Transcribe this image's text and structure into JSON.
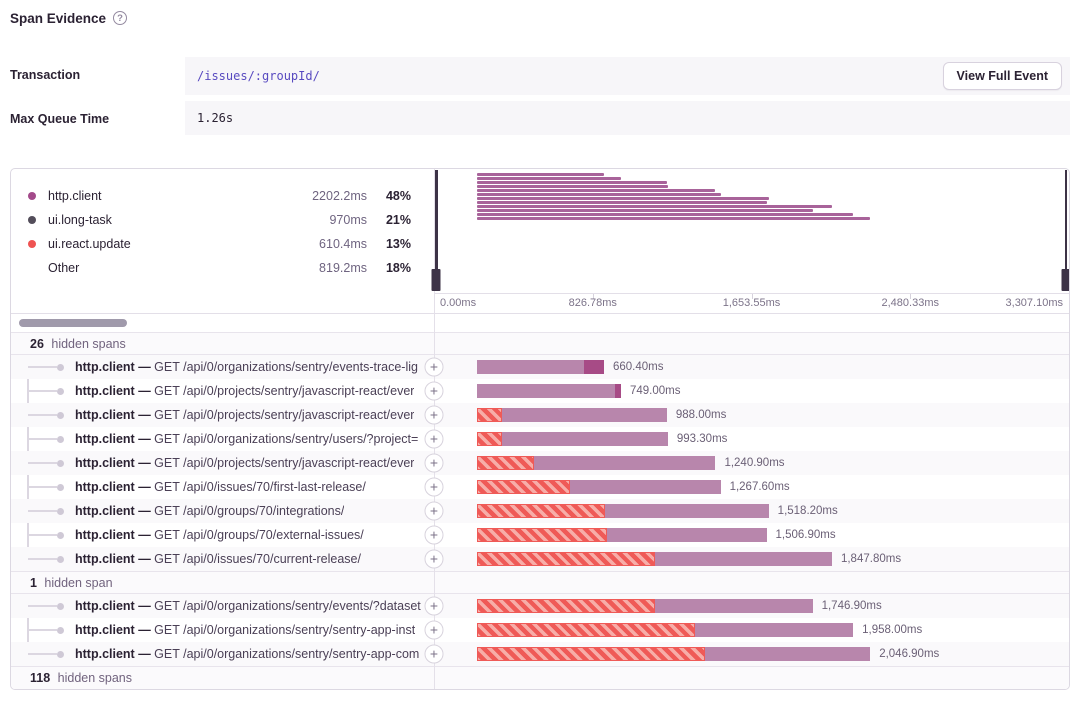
{
  "header": {
    "title": "Span Evidence",
    "help_icon": "?"
  },
  "fields": {
    "transaction": {
      "label": "Transaction",
      "value": "/issues/:groupId/",
      "button": "View Full Event"
    },
    "max_queue_time": {
      "label": "Max Queue Time",
      "value": "1.26s"
    }
  },
  "legend": {
    "items": [
      {
        "name": "http.client",
        "duration": "2202.2ms",
        "percent": "48%",
        "color": "#a34a8a"
      },
      {
        "name": "ui.long-task",
        "duration": "970ms",
        "percent": "21%",
        "color": "#534d5a"
      },
      {
        "name": "ui.react.update",
        "duration": "610.4ms",
        "percent": "13%",
        "color": "#ef5352"
      },
      {
        "name": "Other",
        "duration": "819.2ms",
        "percent": "18%",
        "color": null
      }
    ]
  },
  "axis": {
    "max_ms": 3307.1,
    "labels": [
      "0.00ms",
      "826.78ms",
      "1,653.55ms",
      "2,480.33ms",
      "3,307.10ms"
    ],
    "tick_positions_pct": [
      25,
      50,
      75
    ]
  },
  "minimap": {
    "bar_start_pct": 6.8
  },
  "span_tree": {
    "separator": "—",
    "expand_icon": "+",
    "groups": [
      {
        "hidden_header": {
          "count": "26",
          "label": "hidden spans"
        },
        "rows": [
          {
            "op": "http.client",
            "desc": "GET /api/0/organizations/sentry/events-trace-lig",
            "duration_label": "660.40ms",
            "duration_ms": 660.4,
            "hatch_pct": 0,
            "dark_end_pct": 16
          },
          {
            "op": "http.client",
            "desc": "GET /api/0/projects/sentry/javascript-react/ever",
            "duration_label": "749.00ms",
            "duration_ms": 749.0,
            "hatch_pct": 0,
            "dark_end_pct": 4
          },
          {
            "op": "http.client",
            "desc": "GET /api/0/projects/sentry/javascript-react/ever",
            "duration_label": "988.00ms",
            "duration_ms": 988.0,
            "hatch_pct": 13,
            "dark_end_pct": 0
          },
          {
            "op": "http.client",
            "desc": "GET /api/0/organizations/sentry/users/?project=",
            "duration_label": "993.30ms",
            "duration_ms": 993.3,
            "hatch_pct": 13,
            "dark_end_pct": 0
          },
          {
            "op": "http.client",
            "desc": "GET /api/0/projects/sentry/javascript-react/ever",
            "duration_label": "1,240.90ms",
            "duration_ms": 1240.9,
            "hatch_pct": 24,
            "dark_end_pct": 0
          },
          {
            "op": "http.client",
            "desc": "GET /api/0/issues/70/first-last-release/",
            "duration_label": "1,267.60ms",
            "duration_ms": 1267.6,
            "hatch_pct": 38,
            "dark_end_pct": 0
          },
          {
            "op": "http.client",
            "desc": "GET /api/0/groups/70/integrations/",
            "duration_label": "1,518.20ms",
            "duration_ms": 1518.2,
            "hatch_pct": 44,
            "dark_end_pct": 0
          },
          {
            "op": "http.client",
            "desc": "GET /api/0/groups/70/external-issues/",
            "duration_label": "1,506.90ms",
            "duration_ms": 1506.9,
            "hatch_pct": 45,
            "dark_end_pct": 0
          },
          {
            "op": "http.client",
            "desc": "GET /api/0/issues/70/current-release/",
            "duration_label": "1,847.80ms",
            "duration_ms": 1847.8,
            "hatch_pct": 50,
            "dark_end_pct": 0
          }
        ]
      },
      {
        "hidden_header": {
          "count": "1",
          "label": "hidden span"
        },
        "rows": [
          {
            "op": "http.client",
            "desc": "GET /api/0/organizations/sentry/events/?dataset",
            "duration_label": "1,746.90ms",
            "duration_ms": 1746.9,
            "hatch_pct": 53,
            "dark_end_pct": 0
          },
          {
            "op": "http.client",
            "desc": "GET /api/0/organizations/sentry/sentry-app-inst",
            "duration_label": "1,958.00ms",
            "duration_ms": 1958.0,
            "hatch_pct": 58,
            "dark_end_pct": 0
          },
          {
            "op": "http.client",
            "desc": "GET /api/0/organizations/sentry/sentry-app-com",
            "duration_label": "2,046.90ms",
            "duration_ms": 2046.9,
            "hatch_pct": 58,
            "dark_end_pct": 0
          }
        ]
      }
    ],
    "footer": {
      "count": "118",
      "label": "hidden spans"
    }
  }
}
